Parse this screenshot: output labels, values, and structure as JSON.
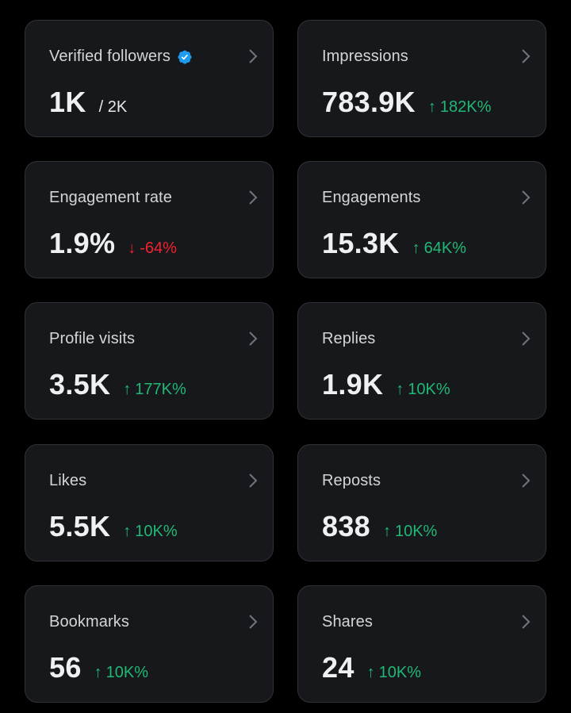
{
  "colors": {
    "background": "#000000",
    "card": "#17181c",
    "up": "#20b875",
    "down": "#f4212e",
    "verified_badge": "#1d9bf0"
  },
  "cards": [
    {
      "label": "Verified followers",
      "value": "1K",
      "sub": "/ 2K",
      "verified_icon": "verified-badge-icon"
    },
    {
      "label": "Impressions",
      "value": "783.9K",
      "arrow": "↑",
      "delta": "182K%",
      "direction": "up"
    },
    {
      "label": "Engagement rate",
      "value": "1.9%",
      "arrow": "↓",
      "delta": "-64%",
      "direction": "down"
    },
    {
      "label": "Engagements",
      "value": "15.3K",
      "arrow": "↑",
      "delta": "64K%",
      "direction": "up"
    },
    {
      "label": "Profile visits",
      "value": "3.5K",
      "arrow": "↑",
      "delta": "177K%",
      "direction": "up"
    },
    {
      "label": "Replies",
      "value": "1.9K",
      "arrow": "↑",
      "delta": "10K%",
      "direction": "up"
    },
    {
      "label": "Likes",
      "value": "5.5K",
      "arrow": "↑",
      "delta": "10K%",
      "direction": "up"
    },
    {
      "label": "Reposts",
      "value": "838",
      "arrow": "↑",
      "delta": "10K%",
      "direction": "up"
    },
    {
      "label": "Bookmarks",
      "value": "56",
      "arrow": "↑",
      "delta": "10K%",
      "direction": "up"
    },
    {
      "label": "Shares",
      "value": "24",
      "arrow": "↑",
      "delta": "10K%",
      "direction": "up"
    }
  ]
}
